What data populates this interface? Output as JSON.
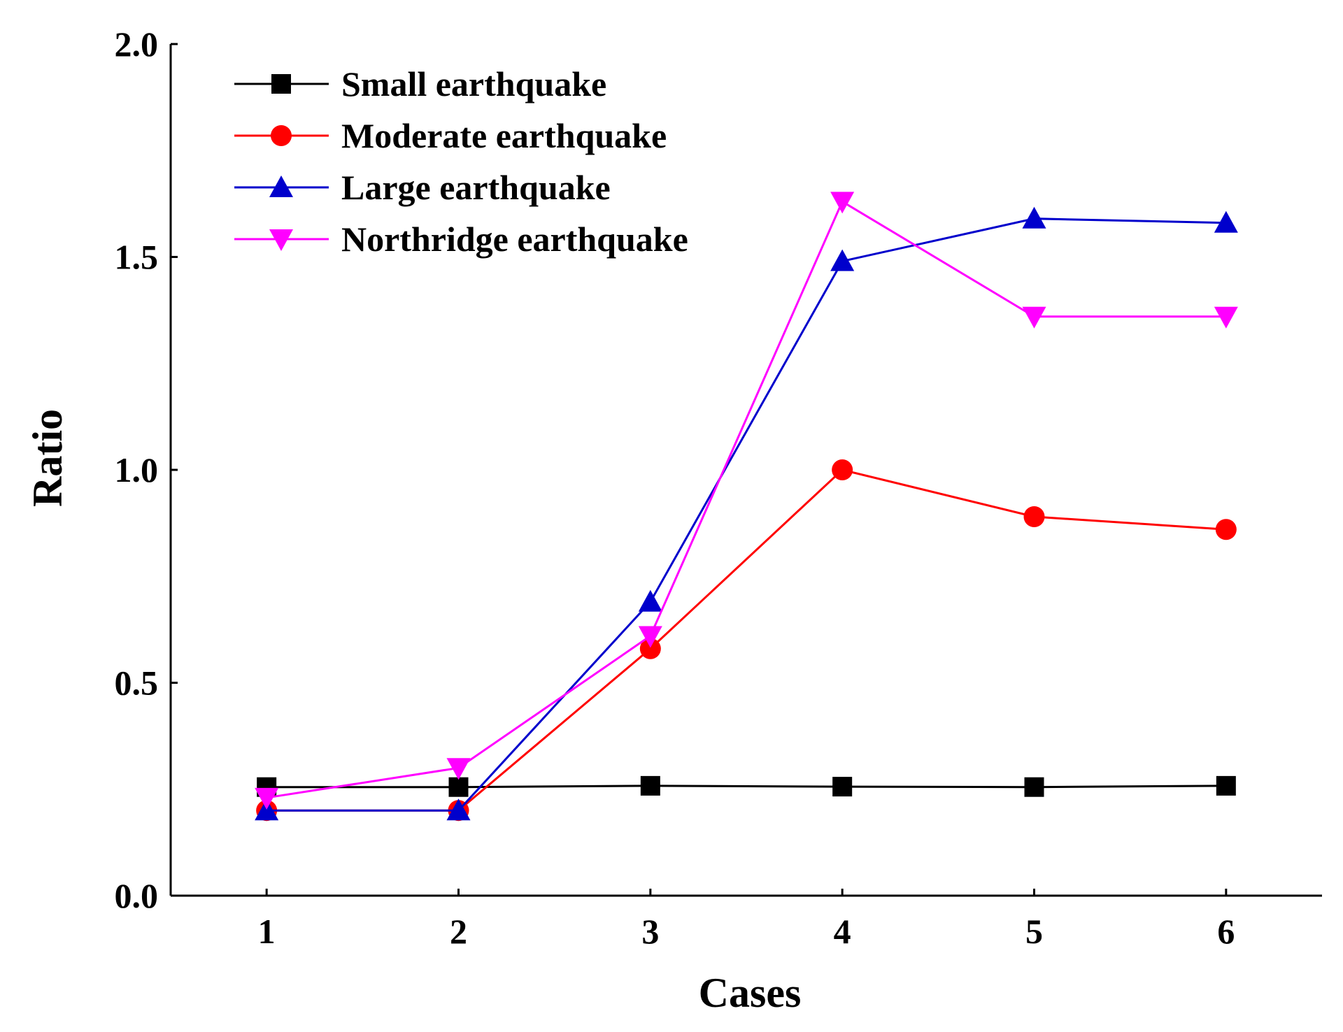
{
  "chart_data": {
    "type": "line",
    "title": "",
    "xlabel": "Cases",
    "ylabel": "Ratio",
    "x": [
      1,
      2,
      3,
      4,
      5,
      6
    ],
    "x_tick_labels": [
      "1",
      "2",
      "3",
      "4",
      "5",
      "6"
    ],
    "xlim": [
      0.5,
      6.5
    ],
    "ylim": [
      0.0,
      2.0
    ],
    "y_ticks": [
      0.0,
      0.5,
      1.0,
      1.5,
      2.0
    ],
    "y_tick_labels": [
      "0.0",
      "0.5",
      "1.0",
      "1.5",
      "2.0"
    ],
    "grid": false,
    "legend_position": "top-left",
    "series": [
      {
        "name": "Small earthquake",
        "color": "#000000",
        "marker": "square",
        "values": [
          0.255,
          0.255,
          0.258,
          0.256,
          0.255,
          0.258
        ]
      },
      {
        "name": "Moderate earthquake",
        "color": "#ff0000",
        "marker": "circle",
        "values": [
          0.2,
          0.2,
          0.58,
          1.0,
          0.89,
          0.86
        ]
      },
      {
        "name": "Large earthquake",
        "color": "#0000cc",
        "marker": "triangle-up",
        "values": [
          0.2,
          0.2,
          0.69,
          1.49,
          1.59,
          1.58
        ]
      },
      {
        "name": "Northridge earthquake",
        "color": "#ff00ff",
        "marker": "triangle-down",
        "values": [
          0.23,
          0.3,
          0.61,
          1.63,
          1.36,
          1.36
        ]
      }
    ]
  }
}
